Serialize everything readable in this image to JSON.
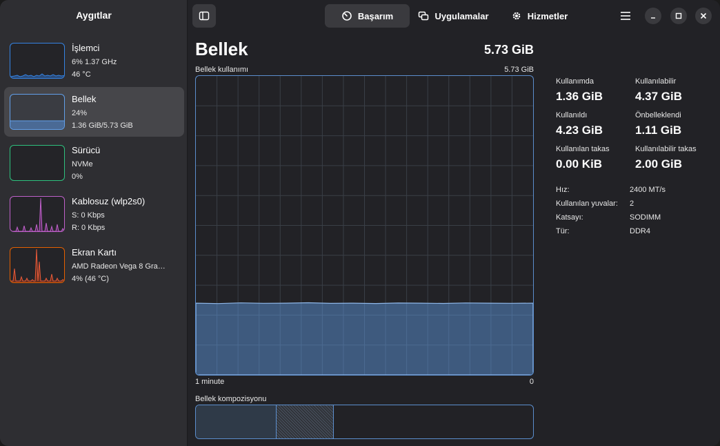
{
  "sidebar": {
    "title": "Aygıtlar",
    "devices": [
      {
        "name": "İşlemci",
        "line1": "6% 1.37 GHz",
        "line2": "46 °C",
        "color": "#3584e4"
      },
      {
        "name": "Bellek",
        "line1": "24%",
        "line2": "1.36 GiB/5.73 GiB",
        "color": "#62a0ea",
        "selected": true,
        "usage_fraction": 0.24
      },
      {
        "name": "Sürücü",
        "line1": "NVMe",
        "line2": "0%",
        "color": "#2ec27e"
      },
      {
        "name": "Kablosuz (wlp2s0)",
        "line1": "S: 0 Kbps",
        "line2": "R: 0 Kbps",
        "color": "#c061cb"
      },
      {
        "name": "Ekran Kartı",
        "line1": "AMD Radeon Vega 8 Gra…",
        "line2": "4% (46 °C)",
        "color": "#e66100"
      }
    ]
  },
  "header": {
    "tabs": [
      {
        "label": "Başarım",
        "icon": "gauge-icon",
        "active": true
      },
      {
        "label": "Uygulamalar",
        "icon": "apps-icon",
        "active": false
      },
      {
        "label": "Hizmetler",
        "icon": "gear-icon",
        "active": false
      }
    ]
  },
  "main": {
    "title": "Bellek",
    "total": "5.73 GiB",
    "graph_label": "Bellek kullanımı",
    "graph_max": "5.73 GiB",
    "graph_x_left": "1 minute",
    "graph_x_right": "0",
    "graph_usage_fraction": 0.24,
    "composition_label": "Bellek kompozisyonu",
    "composition": {
      "used_fraction": 0.24,
      "cached_fraction": 0.17
    }
  },
  "stats": [
    {
      "label": "Kullanımda",
      "value": "1.36 GiB"
    },
    {
      "label": "Kullanılabilir",
      "value": "4.37 GiB"
    },
    {
      "label": "Kullanıldı",
      "value": "4.23 GiB"
    },
    {
      "label": "Önbelleklendi",
      "value": "1.11 GiB"
    },
    {
      "label": "Kullanılan takas",
      "value": "0.00 KiB"
    },
    {
      "label": "Kullanılabilir takas",
      "value": "2.00 GiB"
    }
  ],
  "specs": [
    {
      "key": "Hız:",
      "value": "2400 MT/s"
    },
    {
      "key": "Kullanılan yuvalar:",
      "value": "2"
    },
    {
      "key": "Katsayı:",
      "value": "SODIMM"
    },
    {
      "key": "Tür:",
      "value": "DDR4"
    }
  ]
}
